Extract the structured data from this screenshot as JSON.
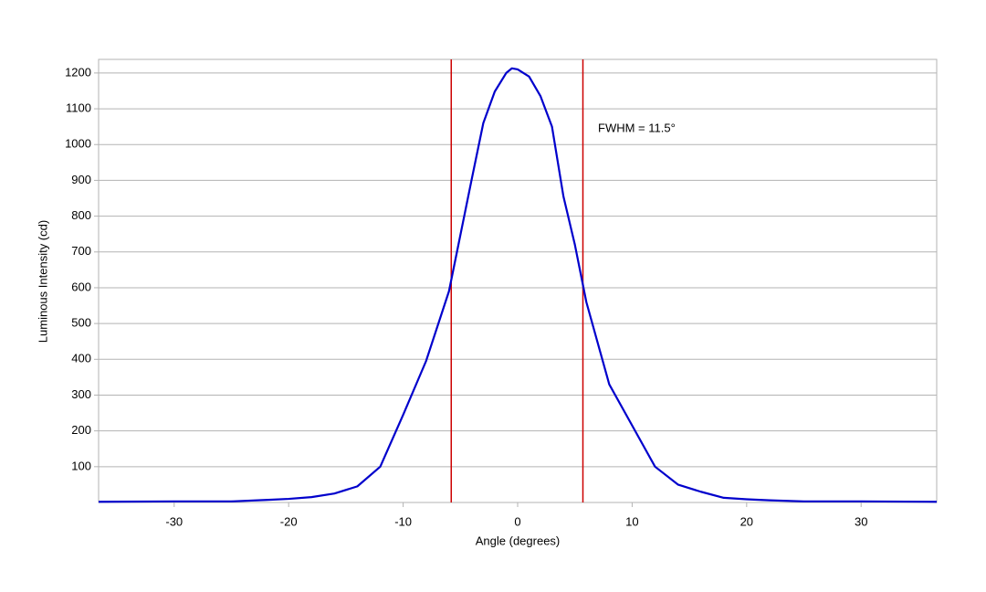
{
  "chart_data": {
    "type": "line",
    "x_label": "Angle (degrees)",
    "y_label": "Luminous Intensity (cd)",
    "x": [
      -36.6,
      -30,
      -25,
      -22,
      -20,
      -18,
      -16,
      -14,
      -12,
      -10,
      -8,
      -6,
      -4,
      -3,
      -2,
      -1,
      -0.5,
      0,
      1,
      2,
      3,
      4,
      5,
      6,
      8,
      10,
      12,
      14,
      16,
      18,
      20,
      22,
      25,
      30,
      36.6
    ],
    "series": [
      {
        "name": "Luminous Intensity",
        "color": "#0000cc",
        "values": [
          2,
          3,
          3,
          7,
          10,
          15,
          25,
          45,
          100,
          245,
          395,
          590,
          905,
          1060,
          1148,
          1200,
          1213,
          1210,
          1190,
          1135,
          1050,
          855,
          720,
          560,
          330,
          215,
          100,
          50,
          30,
          13,
          9,
          6,
          3,
          3,
          2
        ]
      }
    ],
    "vlines": {
      "color": "#cc0000",
      "values": [
        -5.8,
        5.7
      ]
    },
    "annotation": "FWHM = 11.5°",
    "xlim": [
      -36.6,
      36.6
    ],
    "xticks": [
      -30,
      -20,
      -10,
      0,
      10,
      20,
      30
    ],
    "ylim": [
      0,
      1238
    ],
    "yticks": [
      100,
      200,
      300,
      400,
      500,
      600,
      700,
      800,
      900,
      1000,
      1100,
      1200
    ],
    "grid": true
  }
}
